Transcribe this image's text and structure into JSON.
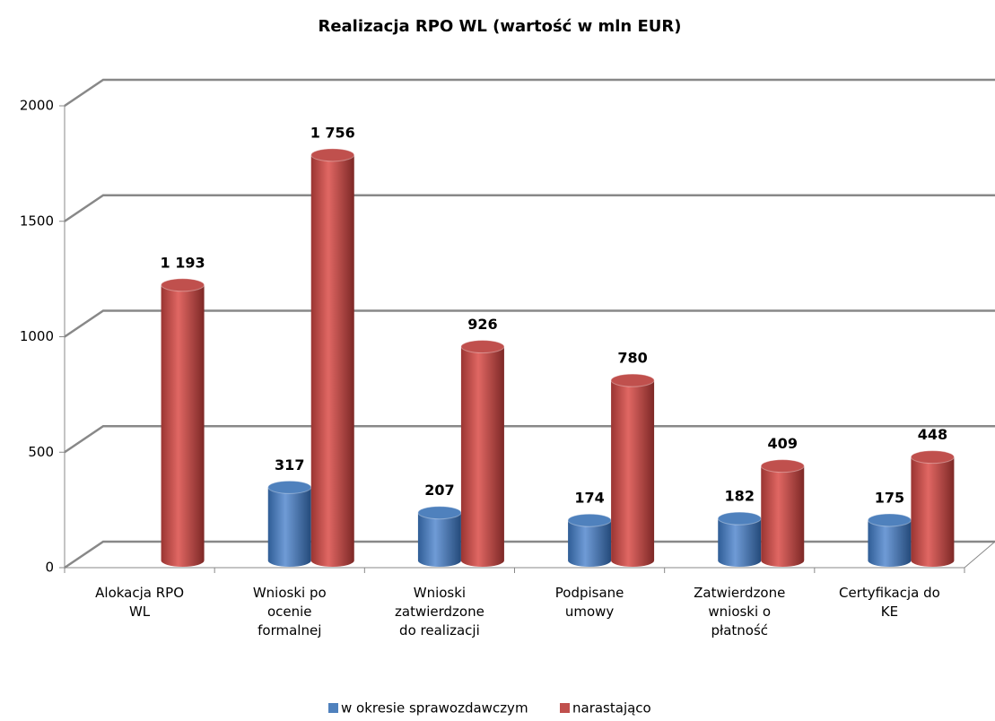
{
  "chart_data": {
    "type": "bar3d",
    "title": "Realizacja RPO WL (wartość w mln EUR)",
    "categories": [
      [
        "Alokacja RPO",
        "WL"
      ],
      [
        "Wnioski po",
        "ocenie",
        "formalnej"
      ],
      [
        "Wnioski",
        "zatwierdzone",
        "do realizacji"
      ],
      [
        "Podpisane",
        "umowy"
      ],
      [
        "Zatwierdzone",
        "wnioski o",
        "płatność"
      ],
      [
        "Certyfikacja do",
        "KE"
      ]
    ],
    "series": [
      {
        "name": "w okresie sprawozdawczym",
        "color": "#4f81bd",
        "values": [
          null,
          317,
          207,
          174,
          182,
          175
        ]
      },
      {
        "name": "narastająco",
        "color": "#c0504d",
        "values": [
          1193,
          1756,
          926,
          780,
          409,
          448
        ],
        "value_labels": [
          "1 193",
          "1 756",
          "926",
          "780",
          "409",
          "448"
        ]
      }
    ],
    "ylim": [
      0,
      2000
    ],
    "yticks": [
      0,
      500,
      1000,
      1500,
      2000
    ],
    "grid": true,
    "legend": "bottom"
  }
}
